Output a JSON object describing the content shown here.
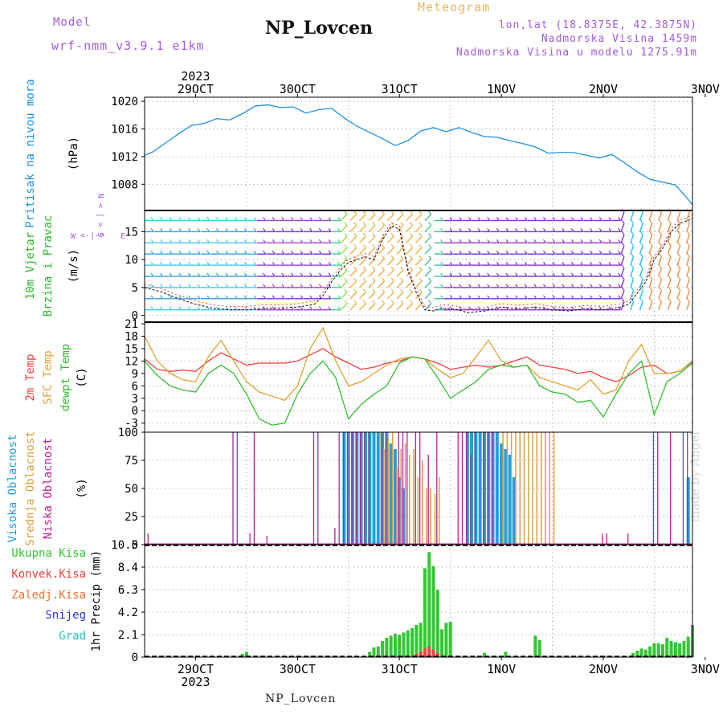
{
  "header": {
    "model_label": "Model",
    "model_name": "wrf-nmm_v3.9.1 e1km",
    "station": "NP_Lovcen",
    "product": "Meteogram",
    "lonlat": "lon,lat (18.8375E, 42.3875N)",
    "altitude": "Nadmorska Visina 1459m",
    "model_altitude": "Nadmorska Visina u modelu 1275.91m",
    "watermark": "made by Angel"
  },
  "footer": {
    "station": "NP_Lovcen"
  },
  "time_axis": {
    "year": "2023",
    "day_labels": [
      "29OCT",
      "30OCT",
      "31OCT",
      "1NOV",
      "2NOV",
      "3NOV"
    ],
    "range_hours": [
      -12,
      117
    ]
  },
  "colors": {
    "pressure": "#1e90e0",
    "temp2m": "#ee4040",
    "sfc_temp": "#e0a030",
    "dewpoint": "#30c030",
    "high_cloud": "#20a0e0",
    "mid_cloud": "#d8a040",
    "low_cloud": "#c02090",
    "total_precip": "#30c830",
    "conv_precip": "#ee4040",
    "wind_label": "#2ab82a",
    "purple_label": "#a35cd6"
  },
  "chart_data": [
    {
      "type": "line",
      "id": "pressure",
      "ylabel_lines": [
        "Pritisak na nivou mora"
      ],
      "unit": "(hPa)",
      "yticks": [
        1008,
        1012,
        1016,
        1020
      ],
      "ylim": [
        1004.2,
        1020.6
      ],
      "grid": true,
      "series": [
        {
          "key": "pressure",
          "x": [
            -12,
            -10,
            -7,
            -4,
            -1,
            2,
            5,
            8,
            11,
            14,
            17,
            20,
            23,
            26,
            29,
            32,
            35,
            38,
            41,
            44,
            47,
            50,
            53,
            56,
            59,
            62,
            65,
            68,
            71,
            74,
            77,
            80,
            83,
            86,
            89,
            92,
            95,
            98,
            101,
            104,
            107,
            110,
            113,
            116,
            117
          ],
          "values": [
            1012.2,
            1012.7,
            1014.0,
            1015.3,
            1016.5,
            1016.8,
            1017.5,
            1017.3,
            1018.2,
            1019.3,
            1019.5,
            1019.1,
            1019.2,
            1018.3,
            1018.8,
            1019.0,
            1017.6,
            1016.4,
            1015.5,
            1014.6,
            1013.6,
            1014.3,
            1015.7,
            1016.2,
            1015.6,
            1016.2,
            1015.5,
            1014.9,
            1014.8,
            1014.3,
            1013.9,
            1013.4,
            1012.5,
            1012.6,
            1012.6,
            1012.2,
            1011.8,
            1012.3,
            1011.1,
            1009.8,
            1008.7,
            1008.3,
            1007.9,
            1005.8,
            1005.0
          ]
        }
      ]
    },
    {
      "type": "line",
      "id": "wind",
      "ylabel_lines": [
        "10m Vjetar",
        "Brzina i Pravac"
      ],
      "unit": "(m/s)",
      "compass": [
        "S",
        "W",
        "E",
        "N"
      ],
      "yticks": [
        0,
        5,
        10,
        15
      ],
      "ylim": [
        -1.2,
        18.8
      ],
      "grid": true,
      "series": [
        {
          "key": "wind_speed",
          "x": [
            -12,
            -8,
            -4,
            0,
            4,
            8,
            12,
            16,
            20,
            24,
            28,
            30,
            32,
            34,
            36,
            38,
            40,
            42,
            44,
            46,
            48,
            50,
            52,
            54,
            56,
            58,
            60,
            62,
            64,
            68,
            72,
            76,
            80,
            84,
            88,
            92,
            96,
            100,
            102,
            104,
            106,
            108,
            110,
            112,
            114,
            116,
            117
          ],
          "values": [
            5.0,
            4.2,
            3.0,
            2.0,
            1.3,
            1.0,
            1.0,
            1.3,
            1.3,
            1.5,
            2.0,
            3.5,
            6.0,
            8.0,
            9.5,
            10.0,
            10.5,
            10.0,
            13.5,
            16.0,
            15.5,
            8.0,
            4.0,
            1.0,
            0.8,
            1.3,
            1.2,
            1.0,
            0.5,
            0.8,
            1.5,
            1.2,
            1.5,
            1.0,
            0.8,
            1.2,
            1.0,
            1.5,
            2.0,
            4.0,
            6.0,
            10.0,
            12.0,
            15.0,
            16.5,
            17.0,
            17.5
          ]
        }
      ]
    },
    {
      "type": "line",
      "id": "temperature",
      "ylabel_lines": [
        "2m Temp",
        "SFC Temp",
        "dewpt Temp"
      ],
      "unit": "(C)",
      "yticks": [
        -3,
        0,
        3,
        6,
        9,
        12,
        15,
        18,
        21
      ],
      "ylim": [
        -5.2,
        21.4
      ],
      "grid": true,
      "series": [
        {
          "key": "temp2m",
          "x": [
            -12,
            -9,
            -6,
            -3,
            0,
            3,
            6,
            9,
            12,
            15,
            18,
            21,
            24,
            27,
            30,
            33,
            36,
            39,
            42,
            45,
            48,
            51,
            54,
            57,
            60,
            63,
            66,
            69,
            72,
            75,
            78,
            81,
            84,
            87,
            90,
            93,
            96,
            99,
            102,
            105,
            108,
            111,
            114,
            117
          ],
          "values": [
            12.5,
            10,
            9.5,
            9.8,
            9.5,
            12,
            14,
            12.5,
            11,
            11.5,
            11.5,
            11.5,
            12,
            13.5,
            15,
            13,
            11.5,
            10,
            10.5,
            11.5,
            12,
            13,
            12.5,
            11.5,
            10,
            10.5,
            11,
            10.5,
            11,
            12,
            13,
            11,
            10.5,
            10,
            9,
            9.5,
            8,
            7,
            8.5,
            10.5,
            11,
            9,
            9.5,
            11.8
          ]
        },
        {
          "key": "sfc_temp",
          "x": [
            -12,
            -9,
            -6,
            -3,
            0,
            3,
            6,
            9,
            12,
            15,
            18,
            21,
            24,
            27,
            30,
            33,
            36,
            39,
            42,
            45,
            48,
            51,
            54,
            57,
            60,
            63,
            66,
            69,
            72,
            75,
            78,
            81,
            84,
            87,
            90,
            93,
            96,
            99,
            102,
            105,
            108,
            111,
            114,
            117
          ],
          "values": [
            18,
            12,
            9,
            7.5,
            7,
            13,
            17,
            12,
            7,
            4.5,
            3.5,
            2.5,
            6,
            15,
            20,
            12,
            6,
            7,
            9,
            11,
            12.5,
            13,
            12.5,
            10,
            8,
            9,
            13,
            17,
            12,
            10.5,
            11,
            8,
            7,
            6,
            5,
            7.5,
            4,
            5,
            12,
            16,
            9,
            9,
            9.5,
            12
          ]
        },
        {
          "key": "dewpoint",
          "x": [
            -12,
            -9,
            -6,
            -3,
            0,
            3,
            6,
            9,
            12,
            15,
            18,
            21,
            24,
            27,
            30,
            33,
            36,
            39,
            42,
            45,
            48,
            51,
            54,
            57,
            60,
            63,
            66,
            69,
            72,
            75,
            78,
            81,
            84,
            87,
            90,
            93,
            96,
            99,
            102,
            105,
            108,
            111,
            114,
            117
          ],
          "values": [
            12,
            8.5,
            6,
            5,
            4.5,
            9,
            11,
            9,
            4,
            -2,
            -3.5,
            -3,
            4,
            9,
            12,
            8,
            -2,
            1.5,
            4,
            6,
            11.5,
            13,
            12.5,
            8,
            3,
            5,
            7,
            10,
            11,
            10.5,
            11,
            6,
            4.5,
            4,
            2,
            2.5,
            -1.5,
            4,
            9,
            12,
            -1,
            7,
            9,
            11.5
          ]
        }
      ]
    },
    {
      "type": "bar",
      "id": "clouds",
      "ylabel_lines": [
        "Visoka Oblacnost",
        "Srednja Oblacnost",
        "Niska Oblacnost"
      ],
      "unit": "(%)",
      "yticks": [
        0,
        25,
        50,
        75,
        100
      ],
      "ylim": [
        0,
        100
      ],
      "grid": true,
      "series": [
        {
          "key": "high_cloud",
          "x": [
            35,
            36,
            37,
            38,
            39,
            40,
            41,
            42,
            43,
            44,
            45,
            46,
            47,
            48,
            49,
            64,
            65,
            66,
            67,
            68,
            69,
            70,
            71,
            72,
            73,
            74,
            75,
            116
          ],
          "values": [
            100,
            100,
            100,
            100,
            100,
            100,
            100,
            100,
            100,
            100,
            100,
            90,
            85,
            60,
            50,
            100,
            100,
            100,
            100,
            100,
            100,
            100,
            100,
            90,
            85,
            80,
            60,
            60
          ]
        },
        {
          "key": "mid_cloud",
          "x": [
            43,
            44,
            45,
            46,
            47,
            48,
            49,
            50,
            51,
            52,
            53,
            54,
            55,
            56,
            57,
            72,
            73,
            74,
            75,
            76,
            77,
            78,
            79,
            80,
            81,
            82,
            83,
            84
          ],
          "values": [
            100,
            85,
            95,
            100,
            70,
            85,
            90,
            80,
            85,
            60,
            75,
            50,
            50,
            45,
            60,
            100,
            100,
            100,
            100,
            100,
            100,
            100,
            100,
            100,
            100,
            100,
            100,
            100
          ]
        },
        {
          "key": "low_cloud",
          "x": [
            -11,
            9,
            10,
            13,
            14,
            17,
            28,
            29,
            33,
            34,
            35,
            36,
            37,
            38,
            39,
            40,
            41,
            44,
            45,
            48,
            49,
            50,
            52,
            53,
            55,
            57,
            62,
            63,
            64,
            65,
            66,
            68,
            69,
            70,
            96,
            97,
            102,
            108,
            109,
            112,
            115,
            116
          ],
          "values": [
            10,
            100,
            100,
            10,
            100,
            8,
            100,
            100,
            15,
            100,
            100,
            100,
            100,
            100,
            100,
            100,
            100,
            100,
            100,
            100,
            100,
            100,
            100,
            100,
            80,
            100,
            100,
            100,
            100,
            80,
            100,
            100,
            100,
            100,
            10,
            10,
            10,
            100,
            100,
            100,
            100,
            100
          ]
        }
      ]
    },
    {
      "type": "bar",
      "id": "precip",
      "ylabel_lines": [
        "Ukupna Kisa",
        "Konvek.Kisa",
        "Zaledj.Kisa",
        "Snijeg",
        "Grad"
      ],
      "unit": "1hr Precip (mm)",
      "yticks": [
        0,
        2.1,
        4.2,
        6.3,
        8.4,
        10.5
      ],
      "ylim": [
        0,
        10.5
      ],
      "grid": true,
      "series": [
        {
          "key": "total_precip",
          "x": [
            11,
            12,
            41,
            42,
            43,
            44,
            45,
            46,
            47,
            48,
            49,
            50,
            51,
            52,
            53,
            54,
            55,
            56,
            57,
            58,
            59,
            60,
            68,
            73,
            80,
            81,
            103,
            104,
            105,
            106,
            107,
            108,
            109,
            110,
            111,
            112,
            113,
            114,
            115,
            116,
            117
          ],
          "values": [
            0.3,
            0.5,
            0.5,
            0.9,
            1.0,
            1.5,
            1.8,
            2.0,
            2.2,
            2.1,
            2.3,
            2.5,
            2.7,
            3.0,
            3.2,
            8.3,
            9.8,
            8.5,
            6.3,
            2.6,
            3.2,
            3.3,
            0.4,
            0.5,
            2.0,
            1.6,
            0.4,
            0.6,
            0.8,
            0.7,
            1.0,
            1.3,
            1.3,
            1.2,
            1.8,
            1.5,
            1.4,
            1.3,
            1.5,
            1.9,
            3.0
          ]
        },
        {
          "key": "conv_precip",
          "x": [
            52,
            53,
            54,
            55,
            56,
            57
          ],
          "values": [
            0.3,
            0.5,
            0.8,
            1.0,
            0.7,
            0.4
          ]
        }
      ]
    }
  ]
}
